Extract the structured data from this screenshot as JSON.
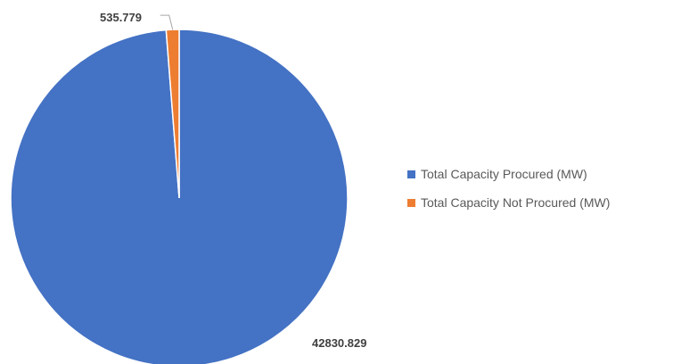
{
  "chart_data": {
    "type": "pie",
    "categories": [
      "Total Capacity Procured (MW)",
      "Total Capacity Not Procured (MW)"
    ],
    "values": [
      42830.829,
      535.779
    ],
    "data_labels": [
      "42830.829",
      "535.779"
    ],
    "colors": [
      "#4472C4",
      "#ED7D31"
    ],
    "start_angle": "12 o'clock, counter-clockwise ordering places small slice left of top",
    "legend": {
      "position": "right",
      "items": [
        {
          "label": "Total Capacity Procured (MW)",
          "color": "#4472C4"
        },
        {
          "label": "Total Capacity Not Procured (MW)",
          "color": "#ED7D31"
        }
      ]
    }
  }
}
